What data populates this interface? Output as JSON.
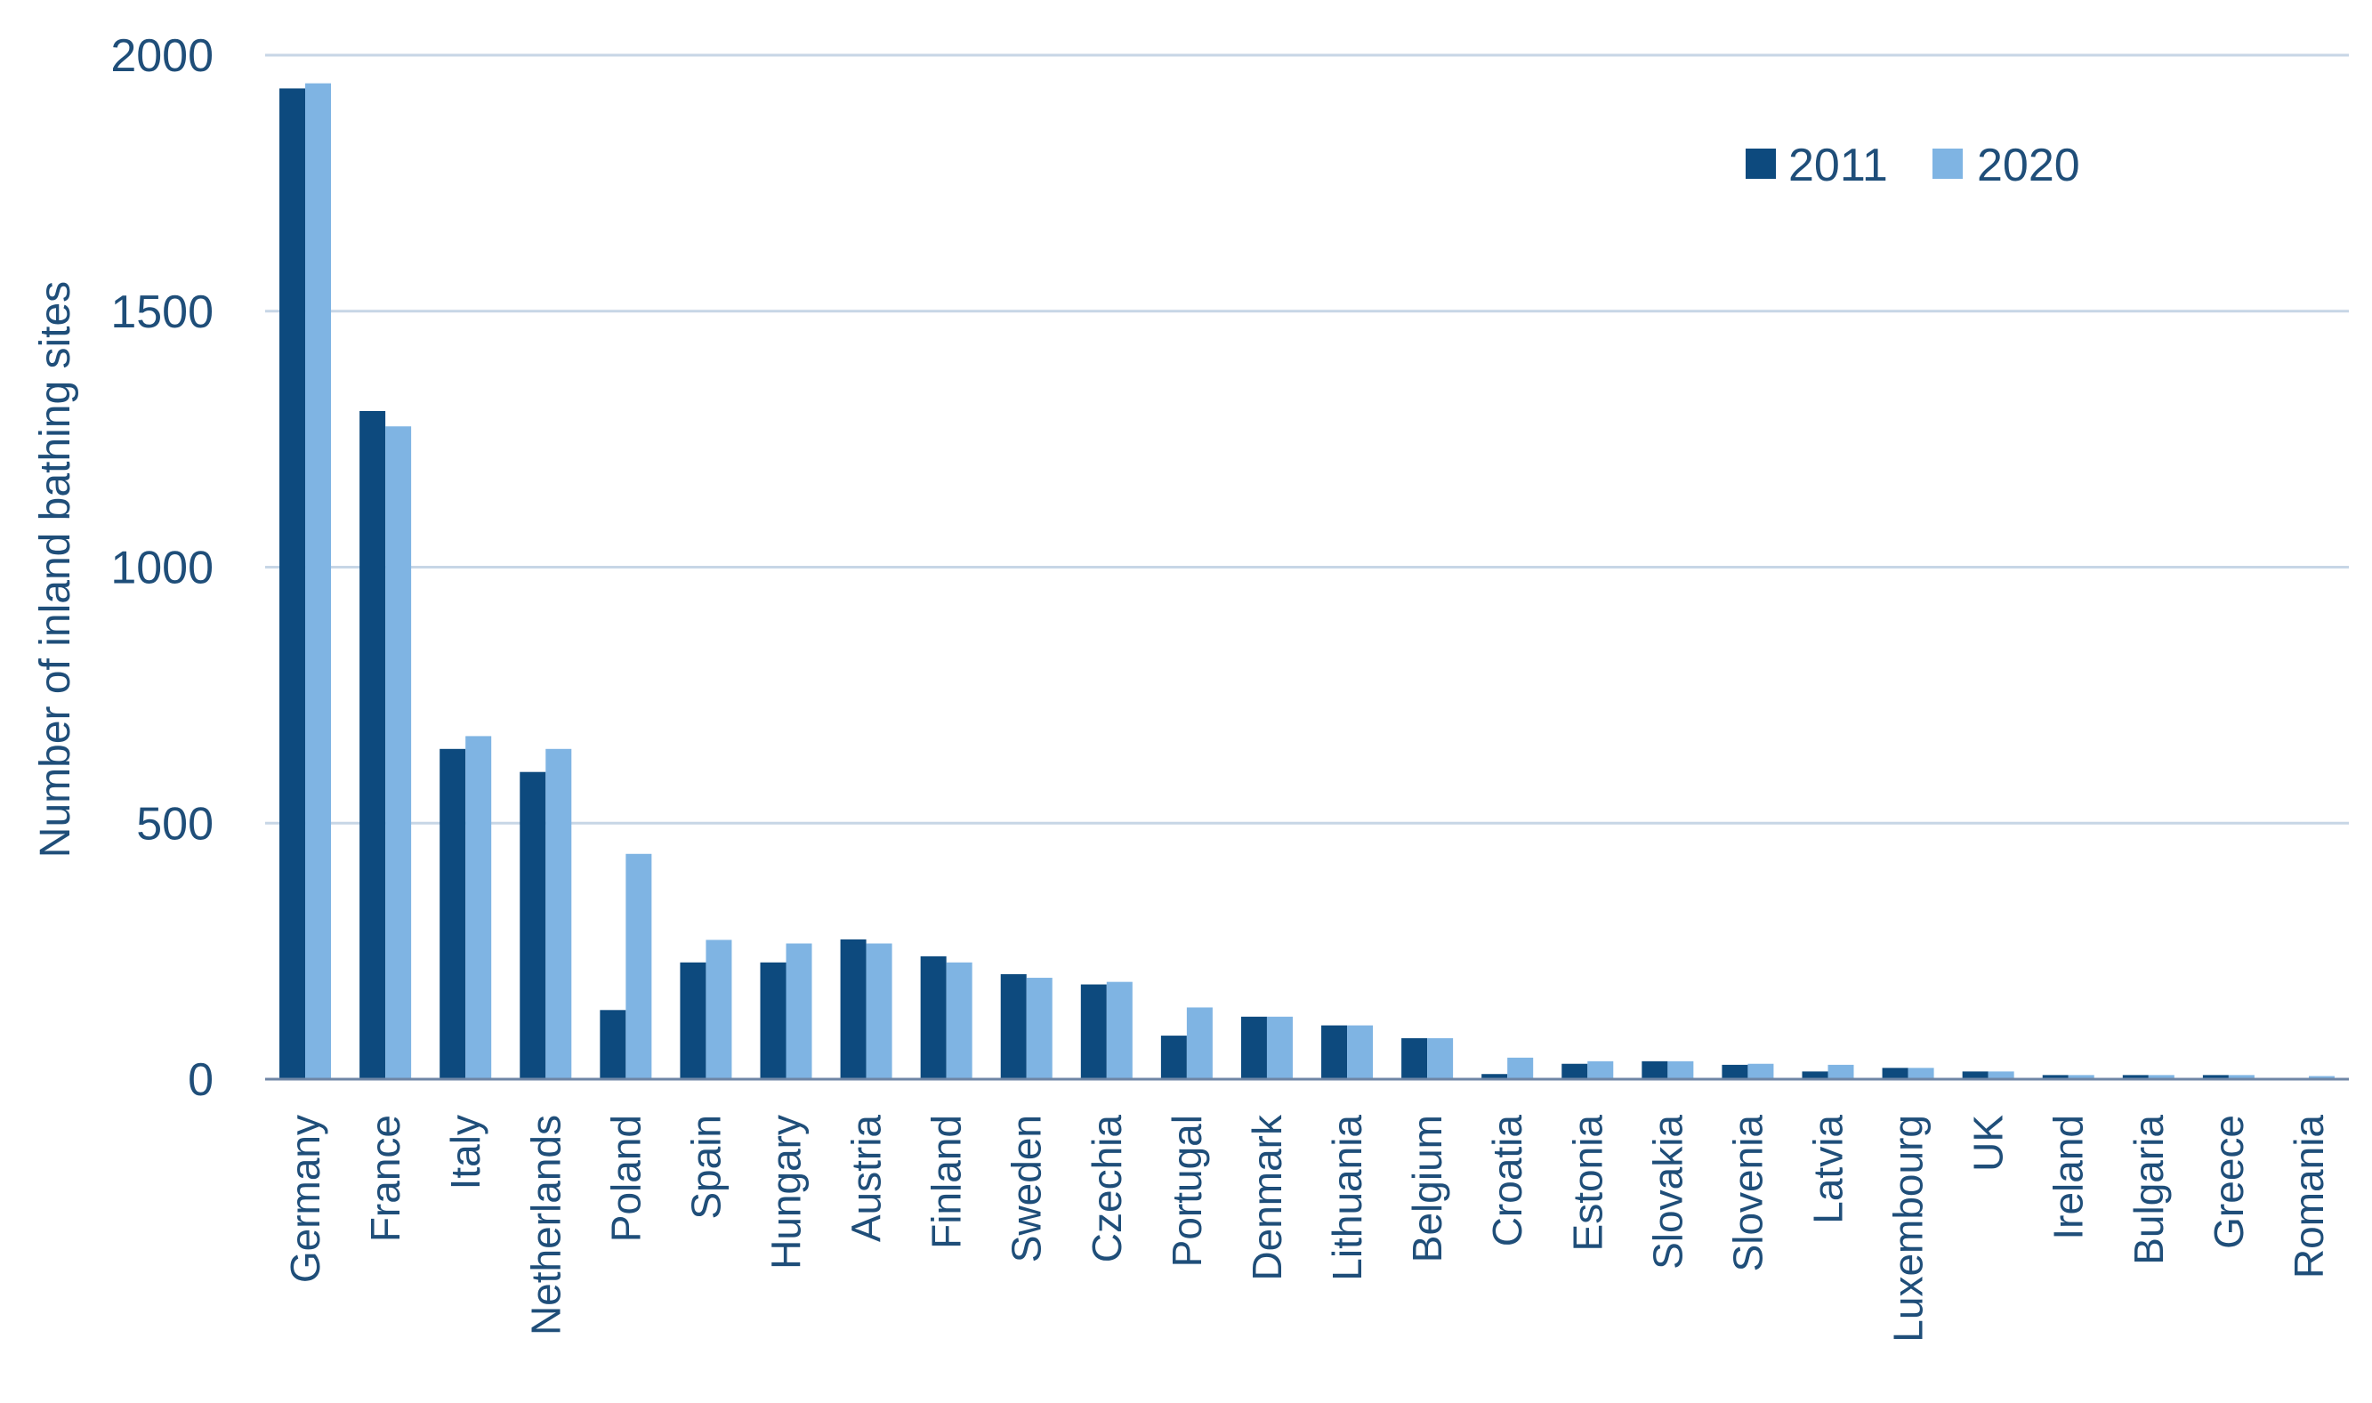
{
  "chart_data": {
    "type": "bar",
    "title": "",
    "xlabel": "",
    "ylabel": "Number of inland bathing sites",
    "ylim": [
      0,
      2000
    ],
    "yticks": [
      0,
      500,
      1000,
      1500,
      2000
    ],
    "grid": true,
    "legend_position": "top-right",
    "categories": [
      "Germany",
      "France",
      "Italy",
      "Netherlands",
      "Poland",
      "Spain",
      "Hungary",
      "Austria",
      "Finland",
      "Sweden",
      "Czechia",
      "Portugal",
      "Denmark",
      "Lithuania",
      "Belgium",
      "Croatia",
      "Estonia",
      "Slovakia",
      "Slovenia",
      "Latvia",
      "Luxembourg",
      "UK",
      "Ireland",
      "Bulgaria",
      "Greece",
      "Romania"
    ],
    "series": [
      {
        "name": "2011",
        "color": "#0d4a7e",
        "values": [
          1935,
          1305,
          645,
          600,
          135,
          228,
          228,
          273,
          240,
          205,
          185,
          85,
          122,
          105,
          80,
          10,
          30,
          35,
          28,
          15,
          22,
          15,
          8,
          8,
          8,
          2
        ]
      },
      {
        "name": "2020",
        "color": "#7fb4e3",
        "values": [
          1945,
          1275,
          670,
          645,
          440,
          272,
          265,
          265,
          228,
          198,
          190,
          140,
          122,
          105,
          80,
          42,
          35,
          35,
          30,
          28,
          22,
          15,
          8,
          8,
          8,
          6
        ]
      }
    ]
  }
}
